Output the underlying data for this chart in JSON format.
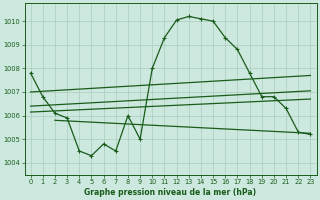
{
  "background_color": "#cce8df",
  "grid_color": "#aaccbb",
  "line_color": "#1a5c1a",
  "title": "Graphe pression niveau de la mer (hPa)",
  "ylim": [
    1003.5,
    1010.75
  ],
  "xlim": [
    -0.5,
    23.5
  ],
  "yticks": [
    1004,
    1005,
    1006,
    1007,
    1008,
    1009,
    1010
  ],
  "xticks": [
    0,
    1,
    2,
    3,
    4,
    5,
    6,
    7,
    8,
    9,
    10,
    11,
    12,
    13,
    14,
    15,
    16,
    17,
    18,
    19,
    20,
    21,
    22,
    23
  ],
  "series1_y": [
    1007.8,
    1006.8,
    1006.1,
    1005.9,
    1004.5,
    1004.3,
    1004.8,
    1004.5,
    1006.0,
    1005.0,
    1008.0,
    1009.3,
    1010.05,
    1010.2,
    1010.1,
    1010.0,
    1009.3,
    1008.8,
    1007.8,
    1006.8,
    1006.8,
    1006.3,
    1005.3,
    1005.2
  ],
  "line2_x": [
    0,
    23
  ],
  "line2_y": [
    1007.0,
    1007.7
  ],
  "line3_x": [
    0,
    23
  ],
  "line3_y": [
    1006.4,
    1007.05
  ],
  "line4_x": [
    0,
    23
  ],
  "line4_y": [
    1006.15,
    1006.7
  ],
  "line5_x": [
    2,
    23
  ],
  "line5_y": [
    1005.8,
    1005.25
  ]
}
